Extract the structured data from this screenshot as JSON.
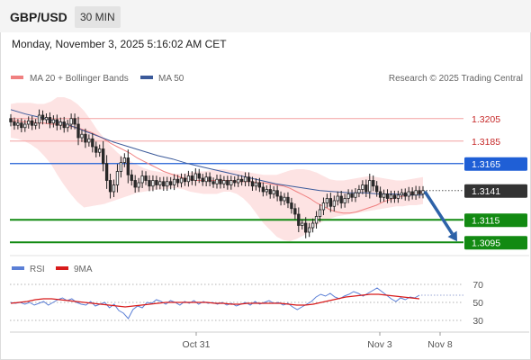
{
  "header": {
    "pair": "GBP/USD",
    "timeframe": "30 MIN"
  },
  "datetime": "Monday, November 3, 2025 5:16:02 AM CET",
  "legend": {
    "bollinger": "MA 20 + Bollinger Bands",
    "ma50": "MA 50",
    "credit": "Research © 2025 Trading Central",
    "rsi": "RSI",
    "rsi_ma": "9MA"
  },
  "colors": {
    "bollinger": "#f08080",
    "ma50": "#3b5a9a",
    "resistance": "#f4a0a0",
    "pivot": "#1f5fd6",
    "support": "#128a12",
    "last": "#333333",
    "arrow": "#2d62a8",
    "rsi": "#5b7fd6",
    "rsi_ma": "#d81b1b"
  },
  "chart_data": [
    {
      "type": "candlestick",
      "title": "GBP/USD",
      "timeframe": "30 MIN",
      "ylim": [
        1.3088,
        1.3232
      ],
      "x_ticks": [
        "Oct 31",
        "Nov 3",
        "Nov 8"
      ],
      "levels": {
        "resistance": [
          {
            "label": "1.3205",
            "value": 1.3205
          },
          {
            "label": "1.3185",
            "value": 1.3185
          }
        ],
        "pivot": {
          "label": "1.3165",
          "value": 1.3165
        },
        "last": {
          "label": "1.3141",
          "value": 1.3141
        },
        "support": [
          {
            "label": "1.3115",
            "value": 1.3115
          },
          {
            "label": "1.3095",
            "value": 1.3095
          }
        ]
      },
      "closes": [
        1.3202,
        1.3199,
        1.3201,
        1.3197,
        1.32,
        1.3203,
        1.3199,
        1.3201,
        1.3208,
        1.3204,
        1.3206,
        1.3201,
        1.3204,
        1.3199,
        1.3202,
        1.3197,
        1.32,
        1.3205,
        1.32,
        1.3188,
        1.3191,
        1.3184,
        1.3187,
        1.318,
        1.3175,
        1.3178,
        1.3165,
        1.315,
        1.314,
        1.3146,
        1.3158,
        1.3166,
        1.317,
        1.3155,
        1.315,
        1.3144,
        1.3148,
        1.3154,
        1.315,
        1.3145,
        1.315,
        1.3146,
        1.3149,
        1.3145,
        1.3149,
        1.3146,
        1.3151,
        1.3148,
        1.3152,
        1.3149,
        1.3154,
        1.315,
        1.3156,
        1.3152,
        1.3149,
        1.3153,
        1.3149,
        1.3147,
        1.3151,
        1.3147,
        1.315,
        1.3146,
        1.315,
        1.3148,
        1.3151,
        1.3149,
        1.3153,
        1.3149,
        1.3145,
        1.3148,
        1.3144,
        1.314,
        1.3142,
        1.3138,
        1.3141,
        1.3136,
        1.3132,
        1.3135,
        1.313,
        1.3125,
        1.312,
        1.311,
        1.3112,
        1.3104,
        1.3108,
        1.3112,
        1.3118,
        1.3124,
        1.313,
        1.3134,
        1.3127,
        1.3132,
        1.3136,
        1.313,
        1.3134,
        1.3138,
        1.3135,
        1.3139,
        1.3142,
        1.3146,
        1.314,
        1.315,
        1.3145,
        1.314,
        1.3135,
        1.3138,
        1.3134,
        1.3137,
        1.3134,
        1.3137,
        1.3139,
        1.3136,
        1.314,
        1.3137,
        1.3141,
        1.3138,
        1.3141
      ],
      "bollinger_mid": [
        1.3203,
        1.3203,
        1.3202,
        1.3202,
        1.3201,
        1.3201,
        1.32,
        1.32,
        1.3199,
        1.3198,
        1.3197,
        1.3195,
        1.3193,
        1.319,
        1.3187,
        1.3183,
        1.318,
        1.3177,
        1.3174,
        1.317,
        1.3167,
        1.3164,
        1.3161,
        1.3158,
        1.3156,
        1.3154,
        1.3152,
        1.3151,
        1.315,
        1.315,
        1.315,
        1.315,
        1.315,
        1.315,
        1.3149,
        1.3149,
        1.3149,
        1.3148,
        1.3148,
        1.3147,
        1.3146,
        1.3145,
        1.3143,
        1.314,
        1.3137,
        1.3134,
        1.313,
        1.3127,
        1.3124,
        1.3122,
        1.3121,
        1.3121,
        1.3122,
        1.3124,
        1.3126,
        1.3128,
        1.3131,
        1.3133,
        1.3135,
        1.3136,
        1.3138,
        1.3139,
        1.314
      ],
      "bollinger_upper": [
        1.3218,
        1.3219,
        1.3219,
        1.3219,
        1.3218,
        1.3218,
        1.322,
        1.3224,
        1.3224,
        1.3222,
        1.3218,
        1.3212,
        1.3204,
        1.3195,
        1.3188,
        1.3181,
        1.3175,
        1.317,
        1.3167,
        1.3164,
        1.3161,
        1.3159,
        1.3158,
        1.3157,
        1.3156,
        1.3156,
        1.3156,
        1.3157,
        1.3158,
        1.3158,
        1.3159,
        1.316,
        1.316,
        1.3159,
        1.3159,
        1.3158,
        1.3157,
        1.3156,
        1.3155,
        1.3155,
        1.3155,
        1.3157,
        1.3159,
        1.316,
        1.316,
        1.3159,
        1.3157,
        1.3154,
        1.3151,
        1.315,
        1.315,
        1.3151,
        1.3152,
        1.3153,
        1.3154,
        1.3153,
        1.3152,
        1.3151,
        1.315,
        1.315,
        1.3151,
        1.3152,
        1.3153
      ],
      "bollinger_lower": [
        1.3188,
        1.3187,
        1.3185,
        1.3182,
        1.3178,
        1.3172,
        1.3165,
        1.3155,
        1.3146,
        1.3138,
        1.3131,
        1.3126,
        1.3127,
        1.3128,
        1.3129,
        1.3131,
        1.3133,
        1.3135,
        1.3137,
        1.3139,
        1.314,
        1.3141,
        1.3142,
        1.3142,
        1.3143,
        1.3143,
        1.3142,
        1.314,
        1.3139,
        1.3138,
        1.3138,
        1.3138,
        1.314,
        1.314,
        1.3138,
        1.3134,
        1.3128,
        1.312,
        1.3112,
        1.3106,
        1.31,
        1.3097,
        1.3096,
        1.3098,
        1.3101,
        1.3105,
        1.311,
        1.3114,
        1.3116,
        1.3118,
        1.3119,
        1.312,
        1.3121,
        1.3122,
        1.3123,
        1.3124,
        1.3125,
        1.3126,
        1.3127,
        1.3127,
        1.3128,
        1.3128,
        1.3129
      ],
      "ma50": [
        1.3213,
        1.3209,
        1.3206,
        1.3203,
        1.3199,
        1.3194,
        1.3189,
        1.3184,
        1.318,
        1.3176,
        1.3172,
        1.3169,
        1.3165,
        1.3162,
        1.3159,
        1.3156,
        1.3153,
        1.315,
        1.3147,
        1.3145,
        1.3143,
        1.3141,
        1.314,
        1.3139,
        1.3139,
        1.3138,
        1.3138,
        1.3137,
        1.3137
      ]
    },
    {
      "type": "line",
      "title": "RSI",
      "y_ticks": [
        70,
        50,
        30
      ],
      "ylim": [
        20,
        80
      ],
      "series": [
        {
          "name": "RSI",
          "values": [
            50,
            49,
            50,
            48,
            50,
            47,
            49,
            51,
            47,
            50,
            53,
            55,
            52,
            54,
            50,
            48,
            47,
            51,
            46,
            48,
            50,
            44,
            48,
            41,
            38,
            32,
            42,
            46,
            44,
            50,
            49,
            53,
            51,
            48,
            52,
            50,
            47,
            51,
            49,
            52,
            48,
            51,
            49,
            50,
            48,
            50,
            47,
            49,
            46,
            48,
            50,
            47,
            51,
            48,
            50,
            52,
            49,
            50,
            47,
            49,
            45,
            42,
            45,
            48,
            51,
            56,
            59,
            57,
            60,
            56,
            54,
            57,
            59,
            62,
            60,
            57,
            60,
            63,
            66,
            62,
            58,
            54,
            51,
            55,
            53,
            56,
            55,
            58
          ]
        },
        {
          "name": "9MA",
          "values": [
            49,
            50,
            51,
            53,
            54,
            54,
            53,
            52,
            51,
            50,
            49,
            48,
            47,
            46,
            45,
            46,
            47,
            48,
            49,
            50,
            50,
            50,
            50,
            50,
            50,
            49,
            49,
            48,
            48,
            49,
            49,
            49,
            49,
            49,
            48,
            47,
            47,
            48,
            50,
            52,
            54,
            56,
            57,
            58,
            59,
            59,
            58,
            57,
            56,
            55,
            54
          ]
        }
      ]
    }
  ]
}
